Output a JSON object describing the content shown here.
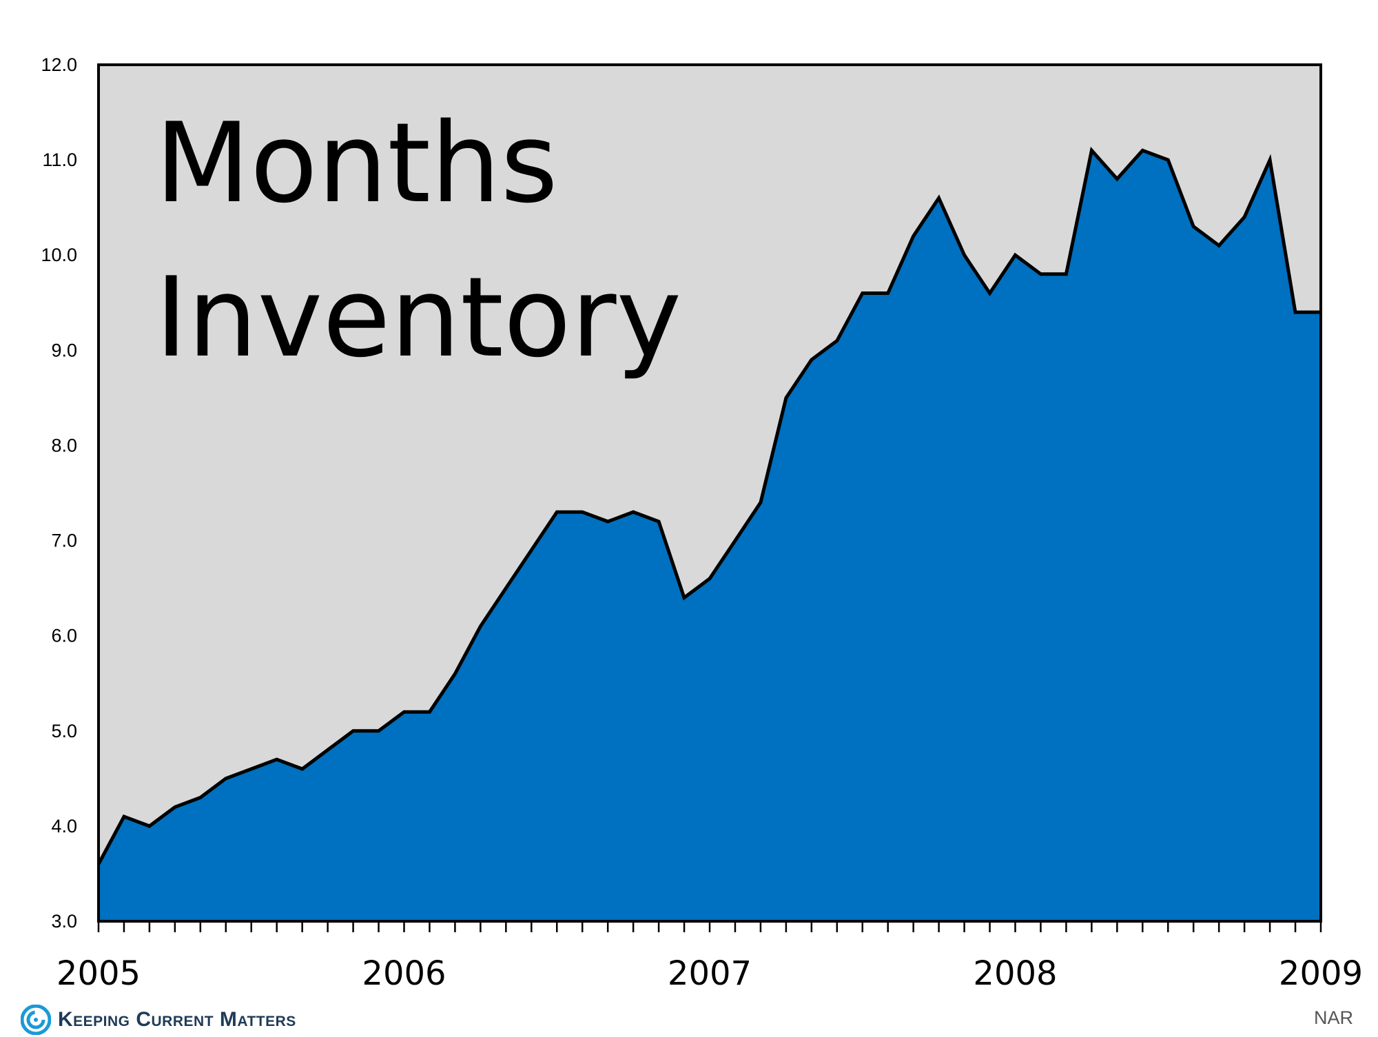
{
  "chart_data": {
    "type": "area",
    "title": "Months Inventory",
    "title_lines": [
      "Months",
      "Inventory"
    ],
    "ylim": [
      3.0,
      12.0
    ],
    "yticks": [
      "3.0",
      "4.0",
      "5.0",
      "6.0",
      "7.0",
      "8.0",
      "9.0",
      "10.0",
      "11.0",
      "12.0"
    ],
    "x_labels": [
      "2005",
      "2006",
      "2007",
      "2008",
      "2009"
    ],
    "grid": false,
    "colors": {
      "fill": "#0070C0",
      "line": "#000000",
      "plot_background": "#D9D9D9"
    },
    "series": [
      {
        "values": [
          3.6,
          4.1,
          4.0,
          4.2,
          4.3,
          4.5,
          4.6,
          4.7,
          4.6,
          4.8,
          5.0,
          5.0,
          5.2,
          5.2,
          5.6,
          6.1,
          6.5,
          6.9,
          7.3,
          7.3,
          7.2,
          7.3,
          7.2,
          6.4,
          6.6,
          7.0,
          7.4,
          8.5,
          8.9,
          9.1,
          9.6,
          9.6,
          10.2,
          10.6,
          10.0,
          9.6,
          10.0,
          9.8,
          9.8,
          11.1,
          10.8,
          11.1,
          11.0,
          10.3,
          10.1,
          10.4,
          11.0,
          9.4
        ]
      }
    ]
  },
  "footer": {
    "brand": "Keeping Current Matters",
    "brand_logo_icon": "swirl-logo-icon",
    "source": "NAR"
  }
}
